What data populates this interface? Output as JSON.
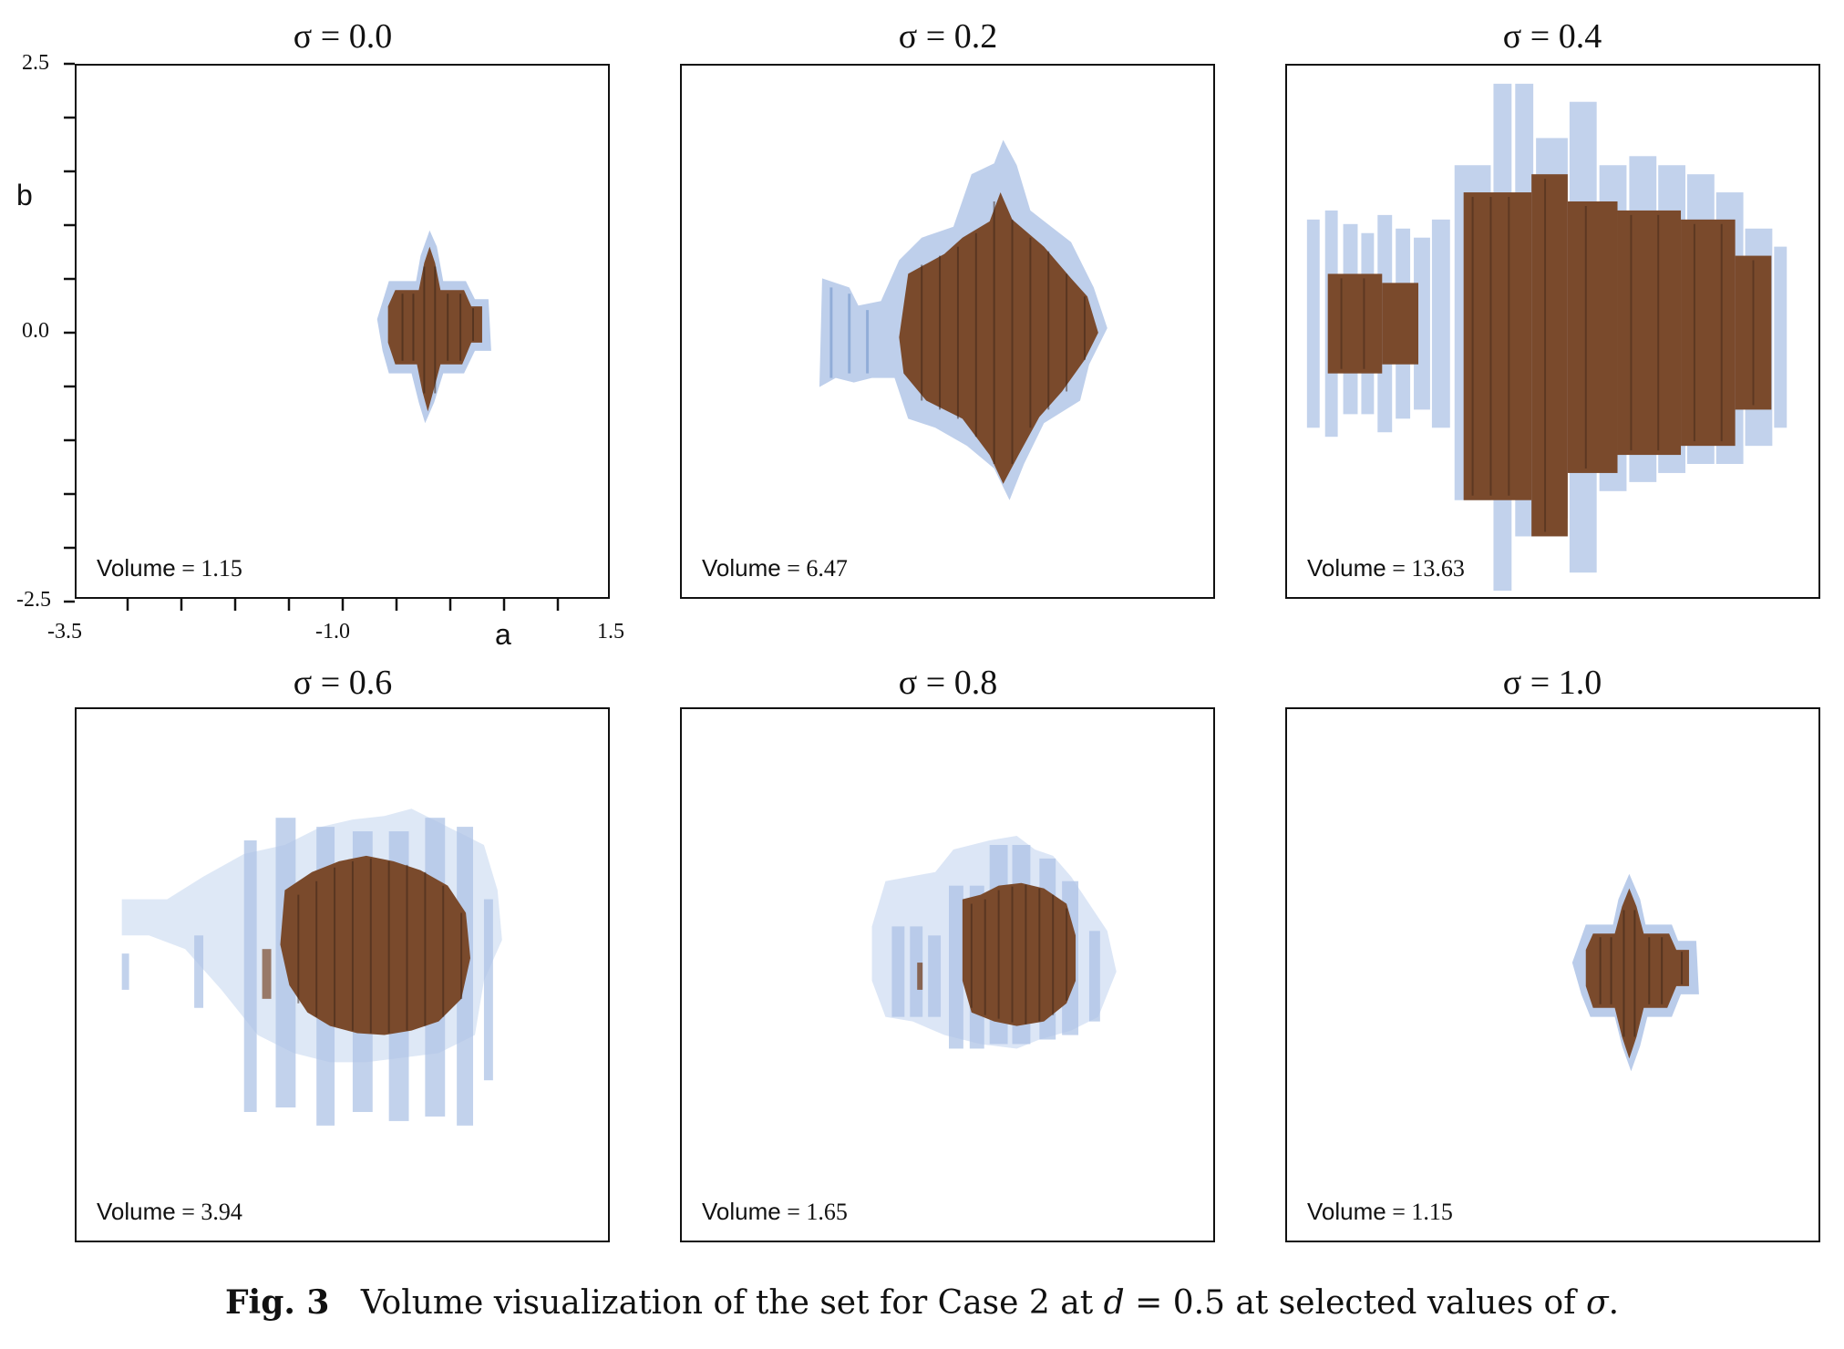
{
  "panels": [
    {
      "title": "σ = 0.0",
      "volume_label": "Volume",
      "volume_value": "= 1.15"
    },
    {
      "title": "σ = 0.2",
      "volume_label": "Volume",
      "volume_value": "= 6.47"
    },
    {
      "title": "σ = 0.4",
      "volume_label": "Volume",
      "volume_value": "= 13.63"
    },
    {
      "title": "σ = 0.6",
      "volume_label": "Volume",
      "volume_value": "= 3.94"
    },
    {
      "title": "σ = 0.8",
      "volume_label": "Volume",
      "volume_value": "= 1.65"
    },
    {
      "title": "σ = 1.0",
      "volume_label": "Volume",
      "volume_value": "= 1.15"
    }
  ],
  "axes": {
    "x_label": "a",
    "y_label": "b",
    "x_ticks": [
      "-3.5",
      "-1.0",
      "1.5"
    ],
    "y_ticks": [
      "2.5",
      "0.0",
      "-2.5"
    ]
  },
  "caption": {
    "prefix": "Fig. 3",
    "text_before": "Volume visualization of the set for Case 2 at ",
    "var_d": "d",
    "text_mid": " = 0.5 at selected values of ",
    "var_sigma": "σ",
    "text_end": "."
  },
  "colors": {
    "core": "#7a4a2c",
    "shell": "#9bb6de"
  }
}
